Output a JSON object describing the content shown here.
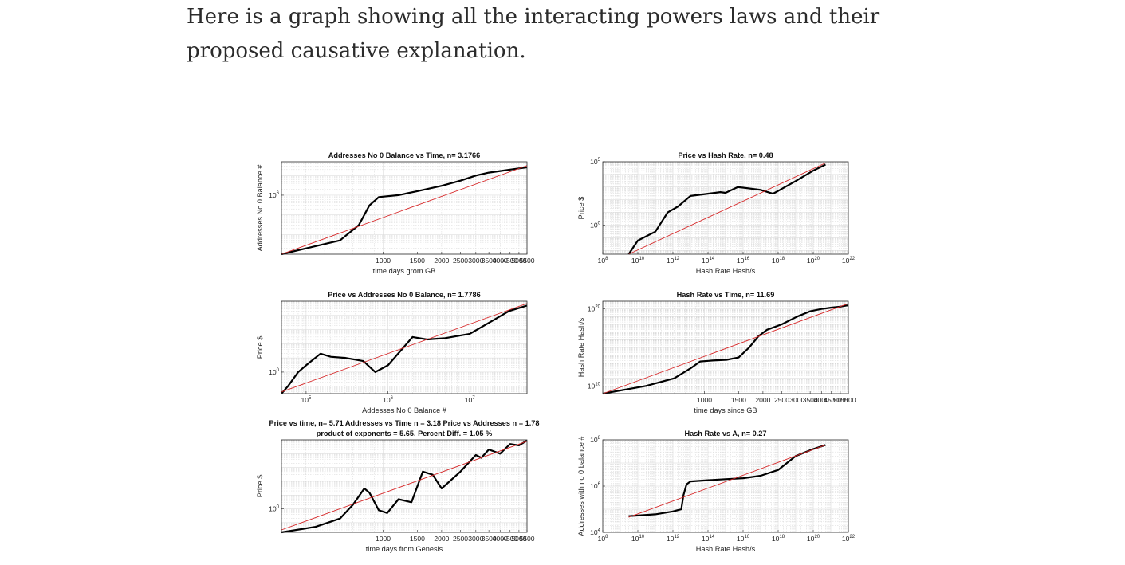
{
  "article": {
    "intro_text": "Here is a graph showing all the interacting powers laws and their proposed causative explanation."
  },
  "colors": {
    "data_line": "#000000",
    "fit_line": "#d62728",
    "grid": "#d6d6d6",
    "axes": "#262626"
  },
  "chart_data": [
    {
      "id": "p1",
      "type": "line",
      "title": "Addresses No 0 Balance vs Time, n= 3.1766",
      "xlabel": "time days grom GB",
      "ylabel": "Addresses No 0 Balance #",
      "xscale": "log",
      "yscale": "log",
      "xlim": [
        300,
        5500
      ],
      "ylim": [
        1000,
        50000000
      ],
      "xticks": [
        1000,
        1500,
        2000,
        2500,
        3000,
        3500,
        4000,
        4500,
        5000,
        5500
      ],
      "xtick_labels": [
        "1000",
        "1500",
        "2000",
        "2500",
        "3000",
        "3500",
        "4000",
        "4500",
        "5000",
        "5500"
      ],
      "yticks": [
        1000000
      ],
      "ytick_labels": [
        {
          "base": "10",
          "exp": "6"
        }
      ],
      "series": [
        {
          "name": "data",
          "x": [
            300,
            600,
            750,
            850,
            950,
            1200,
            1500,
            2000,
            2500,
            3000,
            3500,
            4000,
            4500,
            5000,
            5500
          ],
          "y": [
            1000,
            5000,
            30000,
            300000,
            800000,
            1000000,
            1600000,
            3000000,
            5500000,
            10000000,
            14000000,
            17000000,
            20000000,
            23000000,
            26000000
          ]
        },
        {
          "name": "fit",
          "x": [
            300,
            5500
          ],
          "y": [
            1000,
            32000000
          ]
        }
      ]
    },
    {
      "id": "p2",
      "type": "line",
      "title": "Price vs Hash Rate, n= 0.48",
      "xlabel": "Hash Rate Hash/s",
      "ylabel": "Price $",
      "xscale": "log",
      "yscale": "log",
      "xlim": [
        100000000.0,
        1e+22
      ],
      "ylim": [
        0.005,
        100000
      ],
      "xticks": [
        100000000.0,
        10000000000.0,
        1000000000000.0,
        100000000000000.0,
        1e+16,
        1e+18,
        1e+20,
        1e+22
      ],
      "xtick_labels": [
        {
          "base": "10",
          "exp": "8"
        },
        {
          "base": "10",
          "exp": "10"
        },
        {
          "base": "10",
          "exp": "12"
        },
        {
          "base": "10",
          "exp": "14"
        },
        {
          "base": "10",
          "exp": "16"
        },
        {
          "base": "10",
          "exp": "18"
        },
        {
          "base": "10",
          "exp": "20"
        },
        {
          "base": "10",
          "exp": "22"
        }
      ],
      "yticks": [
        1,
        100000
      ],
      "ytick_labels": [
        {
          "base": "10",
          "exp": "0"
        },
        {
          "base": "10",
          "exp": "5"
        }
      ],
      "series": [
        {
          "name": "data",
          "x": [
            3000000000.0,
            10000000000.0,
            100000000000.0,
            500000000000.0,
            2000000000000.0,
            10000000000000.0,
            100000000000000.0,
            500000000000000.0,
            1000000000000000.0,
            5000000000000000.0,
            1e+16,
            1e+17,
            5e+17,
            1e+18,
            1e+19,
            1e+20,
            5e+20
          ],
          "y": [
            0.005,
            0.06,
            0.3,
            10,
            30,
            200,
            300,
            400,
            350,
            1000,
            900,
            600,
            300,
            500,
            3000,
            20000,
            60000
          ]
        },
        {
          "name": "fit",
          "x": [
            3000000000.0,
            5e+20
          ],
          "y": [
            0.005,
            80000
          ]
        }
      ]
    },
    {
      "id": "p3",
      "type": "line",
      "title": "Price vs Addresses No 0 Balance, n= 1.7786",
      "xlabel": "Addesses No 0 Balance #",
      "ylabel": "Price $",
      "xscale": "log",
      "yscale": "log",
      "xlim": [
        50000,
        50000000
      ],
      "ylim": [
        0.03,
        100000
      ],
      "xticks": [
        100000,
        1000000,
        10000000
      ],
      "xtick_labels": [
        {
          "base": "10",
          "exp": "5"
        },
        {
          "base": "10",
          "exp": "6"
        },
        {
          "base": "10",
          "exp": "7"
        }
      ],
      "yticks": [
        1
      ],
      "ytick_labels": [
        {
          "base": "10",
          "exp": "0"
        }
      ],
      "series": [
        {
          "name": "data",
          "x": [
            50000,
            60000,
            80000,
            100000,
            150000,
            200000,
            300000,
            500000,
            700000,
            1000000,
            2000000,
            3000000,
            5000000,
            10000000,
            20000000,
            30000000,
            50000000
          ],
          "y": [
            0.03,
            0.1,
            1,
            3,
            20,
            12,
            10,
            6,
            1,
            3,
            300,
            200,
            250,
            500,
            5000,
            20000,
            50000
          ]
        },
        {
          "name": "fit",
          "x": [
            50000,
            50000000
          ],
          "y": [
            0.04,
            70000
          ]
        }
      ]
    },
    {
      "id": "p4",
      "type": "line",
      "title": "Hash Rate vs Time, n= 11.69",
      "xlabel": "time days since GB",
      "ylabel": "Hash Rate Hash/s",
      "xscale": "log",
      "yscale": "log",
      "xlim": [
        300,
        5500
      ],
      "ylim": [
        1000000000.0,
        1e+21
      ],
      "xticks": [
        1000,
        1500,
        2000,
        2500,
        3000,
        3500,
        4000,
        4500,
        5000,
        5500
      ],
      "xtick_labels": [
        "1000",
        "1500",
        "2000",
        "2500",
        "3000",
        "3500",
        "4000",
        "4500",
        "5000",
        "5500"
      ],
      "yticks": [
        10000000000.0,
        1e+20
      ],
      "ytick_labels": [
        {
          "base": "10",
          "exp": "10"
        },
        {
          "base": "10",
          "exp": "20"
        }
      ],
      "series": [
        {
          "name": "data",
          "x": [
            300,
            500,
            700,
            850,
            950,
            1100,
            1300,
            1500,
            1700,
            1900,
            2100,
            2500,
            3000,
            3500,
            4000,
            4500,
            5000,
            5500
          ],
          "y": [
            1000000000.0,
            10000000000.0,
            100000000000.0,
            2000000000000.0,
            15000000000000.0,
            20000000000000.0,
            25000000000000.0,
            50000000000000.0,
            1000000000000000.0,
            3e+16,
            2e+17,
            1e+18,
            1e+19,
            5e+19,
            1e+20,
            1.5e+20,
            2e+20,
            3e+20
          ]
        },
        {
          "name": "fit",
          "x": [
            300,
            5500
          ],
          "y": [
            1000000000.0,
            5e+20
          ]
        }
      ]
    },
    {
      "id": "p5",
      "type": "line",
      "title": "Price vs time, n= 5.71 Addresses vs Time n = 3.18 Price vs Addresses n = 1.78",
      "subtitle": "product of exponents = 5.65, Percent Diff. = 1.05 %",
      "xlabel": "time days from Genesis",
      "ylabel": "Price $",
      "xscale": "log",
      "yscale": "log",
      "xlim": [
        300,
        5500
      ],
      "ylim": [
        0.02,
        100000
      ],
      "xticks": [
        1000,
        1500,
        2000,
        2500,
        3000,
        3500,
        4000,
        4500,
        5000,
        5500
      ],
      "xtick_labels": [
        "1000",
        "1500",
        "2000",
        "2500",
        "3000",
        "3500",
        "4000",
        "4500",
        "5000",
        "5500"
      ],
      "yticks": [
        1
      ],
      "ytick_labels": [
        {
          "base": "10",
          "exp": "0"
        }
      ],
      "series": [
        {
          "name": "data",
          "x": [
            300,
            450,
            600,
            700,
            800,
            850,
            950,
            1050,
            1200,
            1400,
            1600,
            1800,
            2000,
            2500,
            3000,
            3200,
            3500,
            4000,
            4500,
            5000,
            5500
          ],
          "y": [
            0.02,
            0.05,
            0.2,
            2,
            30,
            15,
            0.8,
            0.5,
            5,
            3,
            500,
            300,
            30,
            500,
            8000,
            5000,
            20000,
            10000,
            50000,
            40000,
            90000
          ]
        },
        {
          "name": "fit",
          "x": [
            300,
            5500
          ],
          "y": [
            0.03,
            80000
          ]
        }
      ]
    },
    {
      "id": "p6",
      "type": "line",
      "title": "Hash Rate vs A, n= 0.27",
      "xlabel": "Hash Rate Hash/s",
      "ylabel": "Addresses with no 0 balance #",
      "xscale": "log",
      "yscale": "log",
      "xlim": [
        100000000.0,
        1e+22
      ],
      "ylim": [
        10000,
        100000000
      ],
      "xticks": [
        100000000.0,
        10000000000.0,
        1000000000000.0,
        100000000000000.0,
        1e+16,
        1e+18,
        1e+20,
        1e+22
      ],
      "xtick_labels": [
        {
          "base": "10",
          "exp": "8"
        },
        {
          "base": "10",
          "exp": "10"
        },
        {
          "base": "10",
          "exp": "12"
        },
        {
          "base": "10",
          "exp": "14"
        },
        {
          "base": "10",
          "exp": "16"
        },
        {
          "base": "10",
          "exp": "18"
        },
        {
          "base": "10",
          "exp": "20"
        },
        {
          "base": "10",
          "exp": "22"
        }
      ],
      "yticks": [
        10000,
        1000000,
        100000000
      ],
      "ytick_labels": [
        {
          "base": "10",
          "exp": "4"
        },
        {
          "base": "10",
          "exp": "6"
        },
        {
          "base": "10",
          "exp": "8"
        }
      ],
      "series": [
        {
          "name": "data",
          "x": [
            3000000000.0,
            100000000000.0,
            1000000000000.0,
            3000000000000.0,
            4000000000000.0,
            6000000000000.0,
            10000000000000.0,
            100000000000000.0,
            1000000000000000.0,
            1e+16,
            1e+17,
            1e+18,
            1e+19,
            1e+20,
            5e+20
          ],
          "y": [
            50000,
            60000,
            80000,
            100000,
            400000,
            1200000,
            1600000,
            1800000,
            2000000,
            2200000,
            2800000,
            5000000,
            20000000,
            40000000,
            60000000
          ]
        },
        {
          "name": "fit",
          "x": [
            3000000000.0,
            5e+20
          ],
          "y": [
            45000,
            60000000
          ]
        }
      ]
    }
  ]
}
